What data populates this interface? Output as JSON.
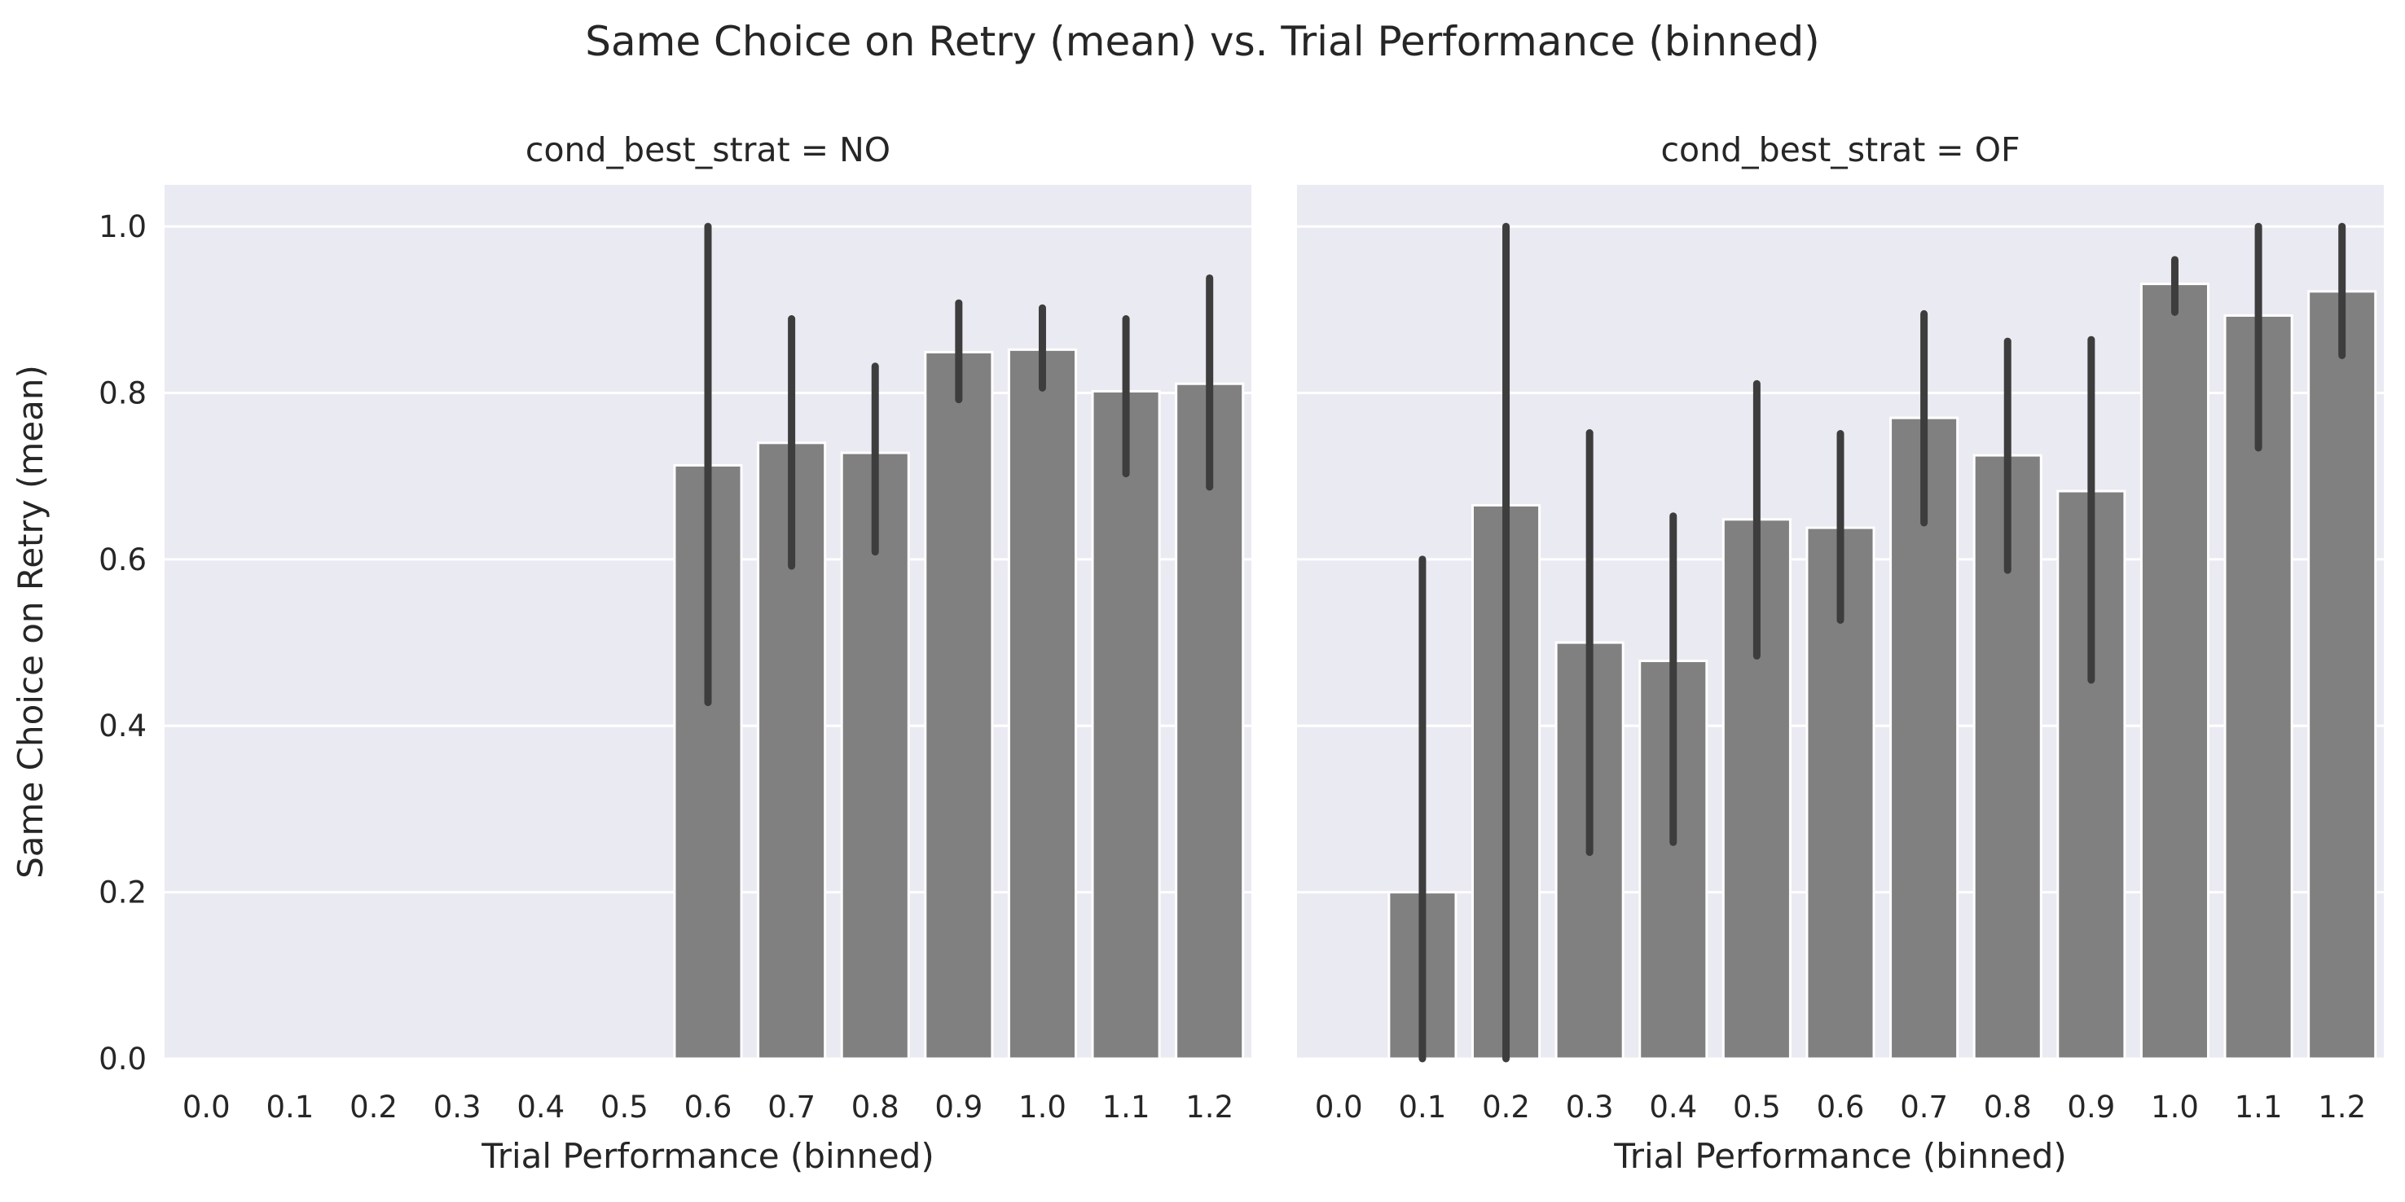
{
  "figure": {
    "title": "Same Choice on Retry (mean) vs. Trial Performance (binned)"
  },
  "chart_data": [
    {
      "type": "bar",
      "title": "cond_best_strat = NO",
      "xlabel": "Trial Performance (binned)",
      "ylabel": "Same Choice on Retry (mean)",
      "categories": [
        "0.0",
        "0.1",
        "0.2",
        "0.3",
        "0.4",
        "0.5",
        "0.6",
        "0.7",
        "0.8",
        "0.9",
        "1.0",
        "1.1",
        "1.2"
      ],
      "values": [
        null,
        null,
        null,
        null,
        null,
        null,
        0.713,
        0.74,
        0.728,
        0.849,
        0.852,
        0.802,
        0.811
      ],
      "ci_low": [
        null,
        null,
        null,
        null,
        null,
        null,
        0.428,
        0.592,
        0.609,
        0.792,
        0.806,
        0.703,
        0.687
      ],
      "ci_high": [
        null,
        null,
        null,
        null,
        null,
        null,
        1.0,
        0.889,
        0.832,
        0.908,
        0.902,
        0.889,
        0.938
      ],
      "yticks": [
        "0.0",
        "0.2",
        "0.4",
        "0.6",
        "0.8",
        "1.0"
      ],
      "ylim": [
        0,
        1.05
      ],
      "grid": true,
      "bar_color": "#808080",
      "errorbar_color": "#3d3d3d",
      "background_color": "#eaeaf2"
    },
    {
      "type": "bar",
      "title": "cond_best_strat = OF",
      "xlabel": "Trial Performance (binned)",
      "ylabel": "",
      "categories": [
        "0.0",
        "0.1",
        "0.2",
        "0.3",
        "0.4",
        "0.5",
        "0.6",
        "0.7",
        "0.8",
        "0.9",
        "1.0",
        "1.1",
        "1.2"
      ],
      "values": [
        null,
        0.2,
        0.665,
        0.5,
        0.478,
        0.648,
        0.638,
        0.77,
        0.725,
        0.682,
        0.931,
        0.893,
        0.922
      ],
      "ci_low": [
        null,
        0.0,
        0.0,
        0.248,
        0.26,
        0.484,
        0.527,
        0.644,
        0.587,
        0.455,
        0.897,
        0.734,
        0.845
      ],
      "ci_high": [
        null,
        0.6,
        1.0,
        0.752,
        0.652,
        0.811,
        0.751,
        0.895,
        0.862,
        0.864,
        0.96,
        1.0,
        1.0
      ],
      "yticks": [],
      "ylim": [
        0,
        1.05
      ],
      "grid": true,
      "bar_color": "#808080",
      "errorbar_color": "#3d3d3d",
      "background_color": "#eaeaf2"
    }
  ]
}
